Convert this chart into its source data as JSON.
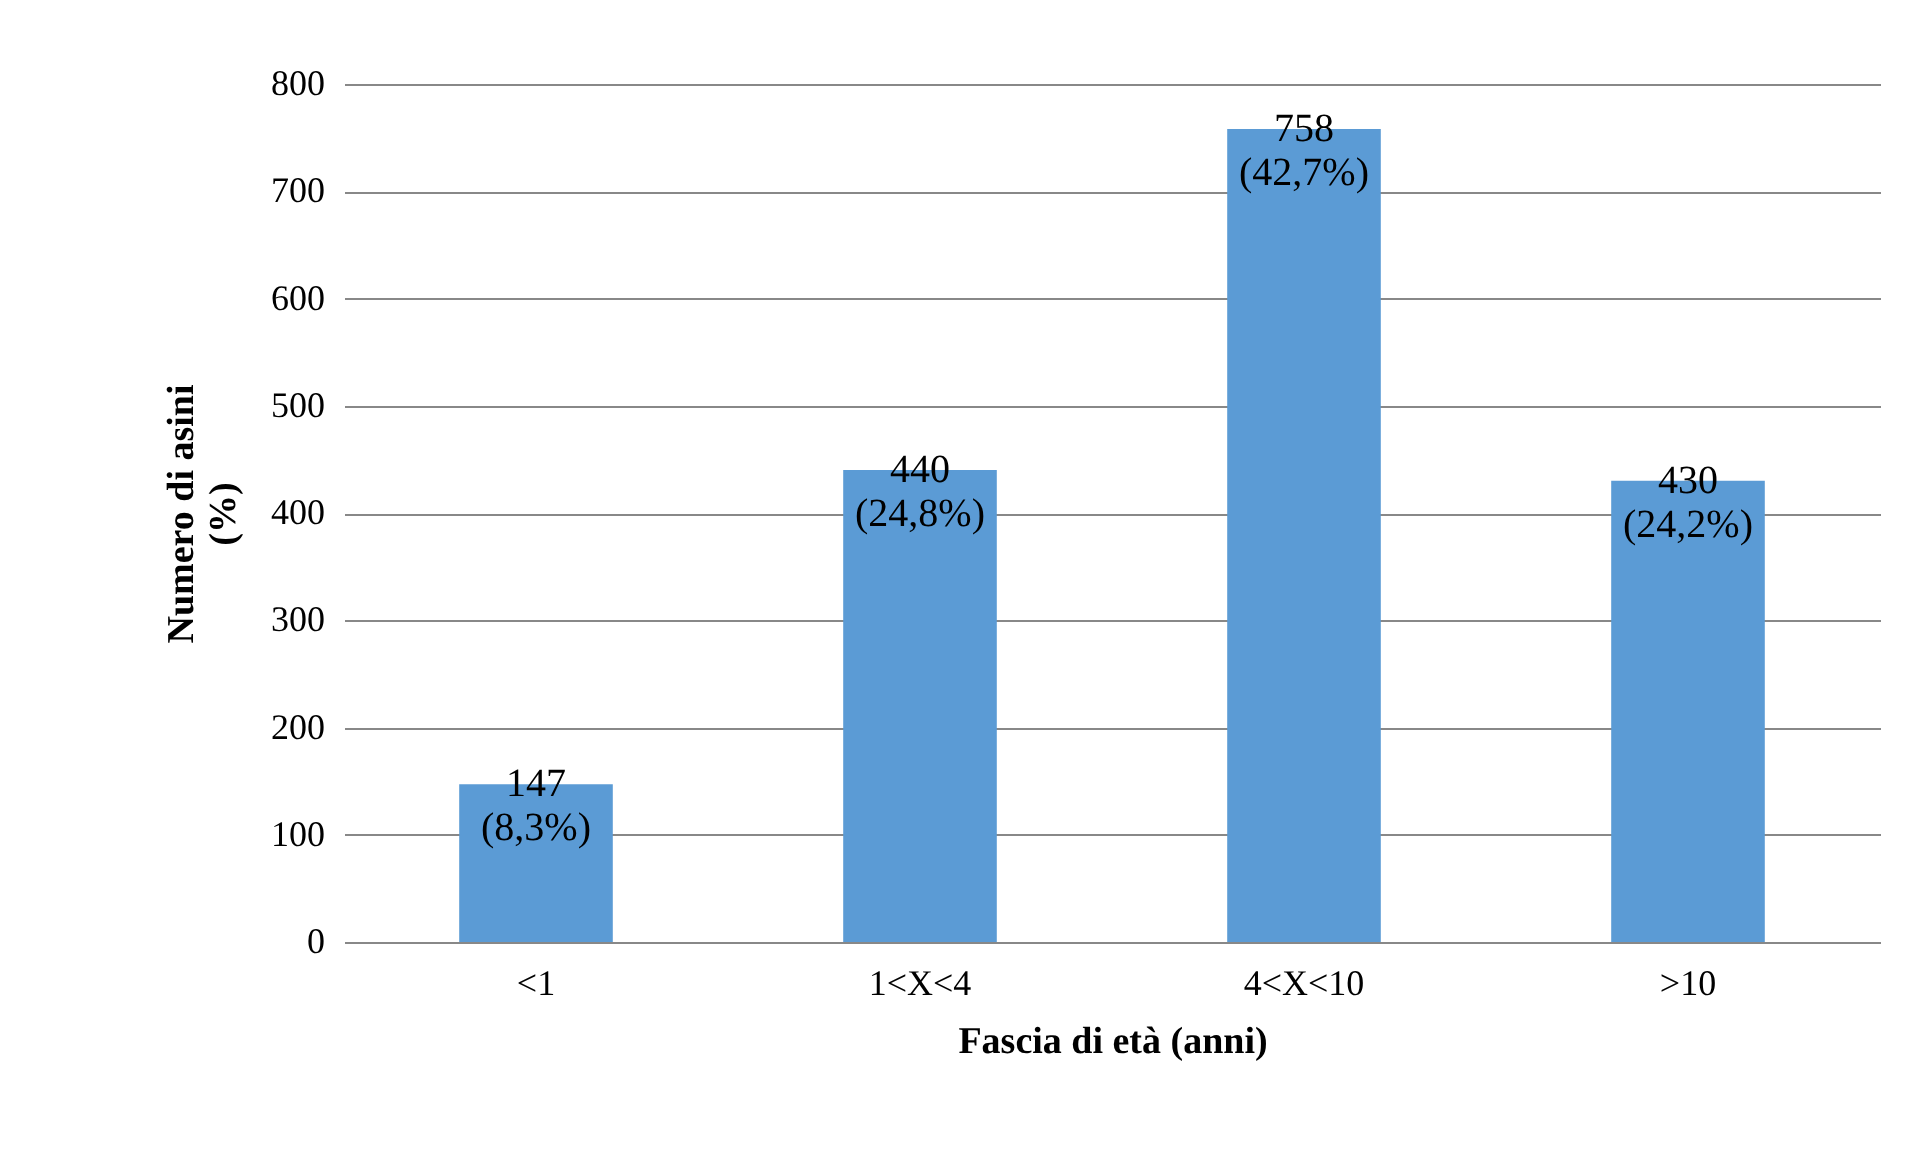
{
  "chart_data": {
    "type": "bar",
    "xlabel": "Fascia di età (anni)",
    "ylabel": "Numero di asini\n(%)",
    "categories": [
      "<1",
      "1<X<4",
      "4<X<10",
      ">10"
    ],
    "values": [
      147,
      440,
      758,
      430
    ],
    "value_labels": [
      "147\n(8,3%)",
      "440\n(24,8%)",
      "758\n(42,7%)",
      "430\n(24,2%)"
    ],
    "color": "#5b9bd5",
    "ylim": [
      0,
      800
    ],
    "yticks": [
      0,
      100,
      200,
      300,
      400,
      500,
      600,
      700,
      800
    ],
    "grid": "y"
  }
}
